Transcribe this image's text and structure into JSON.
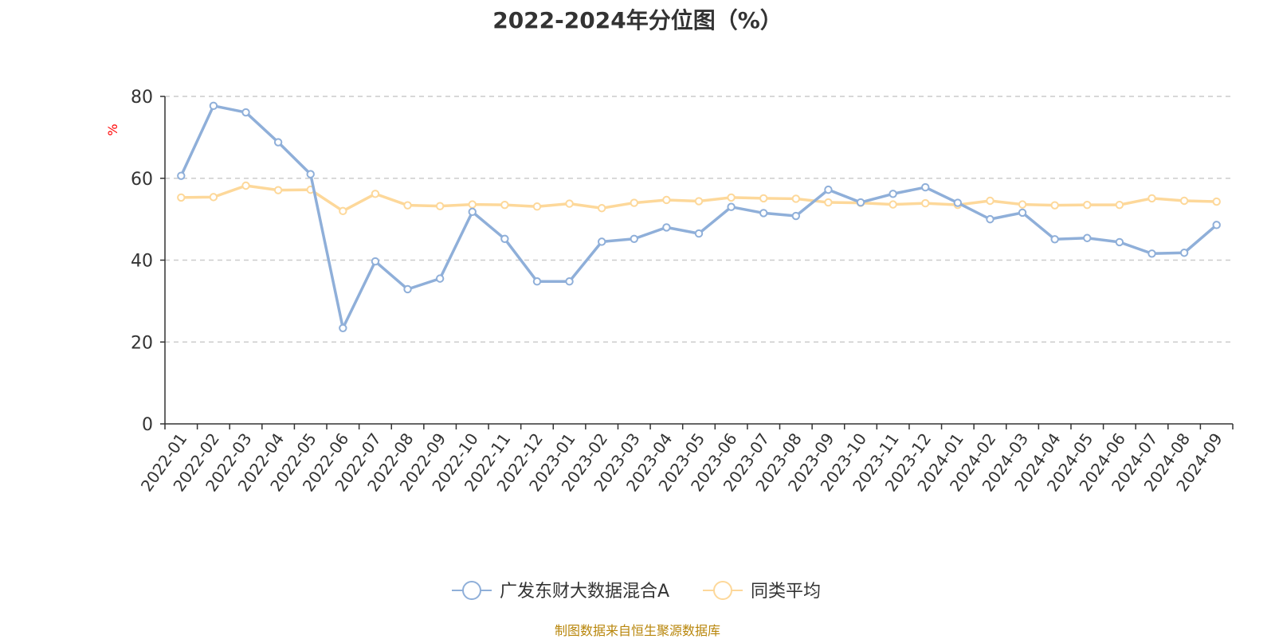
{
  "chart_data": {
    "type": "line",
    "title": "2022-2024年分位图（%）",
    "ylabel": "%",
    "xlabel": "",
    "ylim": [
      0,
      80
    ],
    "yticks": [
      0,
      20,
      40,
      60,
      80
    ],
    "grid": true,
    "legend_position": "bottom-center",
    "categories": [
      "2022-01",
      "2022-02",
      "2022-03",
      "2022-04",
      "2022-05",
      "2022-06",
      "2022-07",
      "2022-08",
      "2022-09",
      "2022-10",
      "2022-11",
      "2022-12",
      "2023-01",
      "2023-02",
      "2023-03",
      "2023-04",
      "2023-05",
      "2023-06",
      "2023-07",
      "2023-08",
      "2023-09",
      "2023-10",
      "2023-11",
      "2023-12",
      "2024-01",
      "2024-02",
      "2024-03",
      "2024-04",
      "2024-05",
      "2024-06",
      "2024-07",
      "2024-08",
      "2024-09"
    ],
    "series": [
      {
        "name": "广发东财大数据混合A",
        "color": "#8fafd9",
        "values": [
          60.6,
          77.7,
          76.1,
          68.8,
          61.0,
          23.4,
          39.7,
          32.9,
          35.5,
          51.8,
          45.2,
          34.8,
          34.8,
          44.5,
          45.2,
          48.0,
          46.5,
          53.0,
          51.5,
          50.8,
          57.2,
          54.1,
          56.2,
          57.8,
          54.0,
          50.0,
          51.6,
          45.1,
          45.4,
          44.4,
          41.6,
          41.8,
          48.6
        ]
      },
      {
        "name": "同类平均",
        "color": "#fdd89a",
        "values": [
          55.3,
          55.4,
          58.2,
          57.1,
          57.2,
          52.0,
          56.2,
          53.4,
          53.2,
          53.6,
          53.5,
          53.1,
          53.8,
          52.7,
          54.0,
          54.7,
          54.4,
          55.3,
          55.1,
          55.0,
          54.1,
          54.0,
          53.6,
          53.9,
          53.5,
          54.5,
          53.6,
          53.4,
          53.5,
          53.5,
          55.1,
          54.5,
          54.3
        ]
      }
    ]
  },
  "source_note": "制图数据来自恒生聚源数据库"
}
